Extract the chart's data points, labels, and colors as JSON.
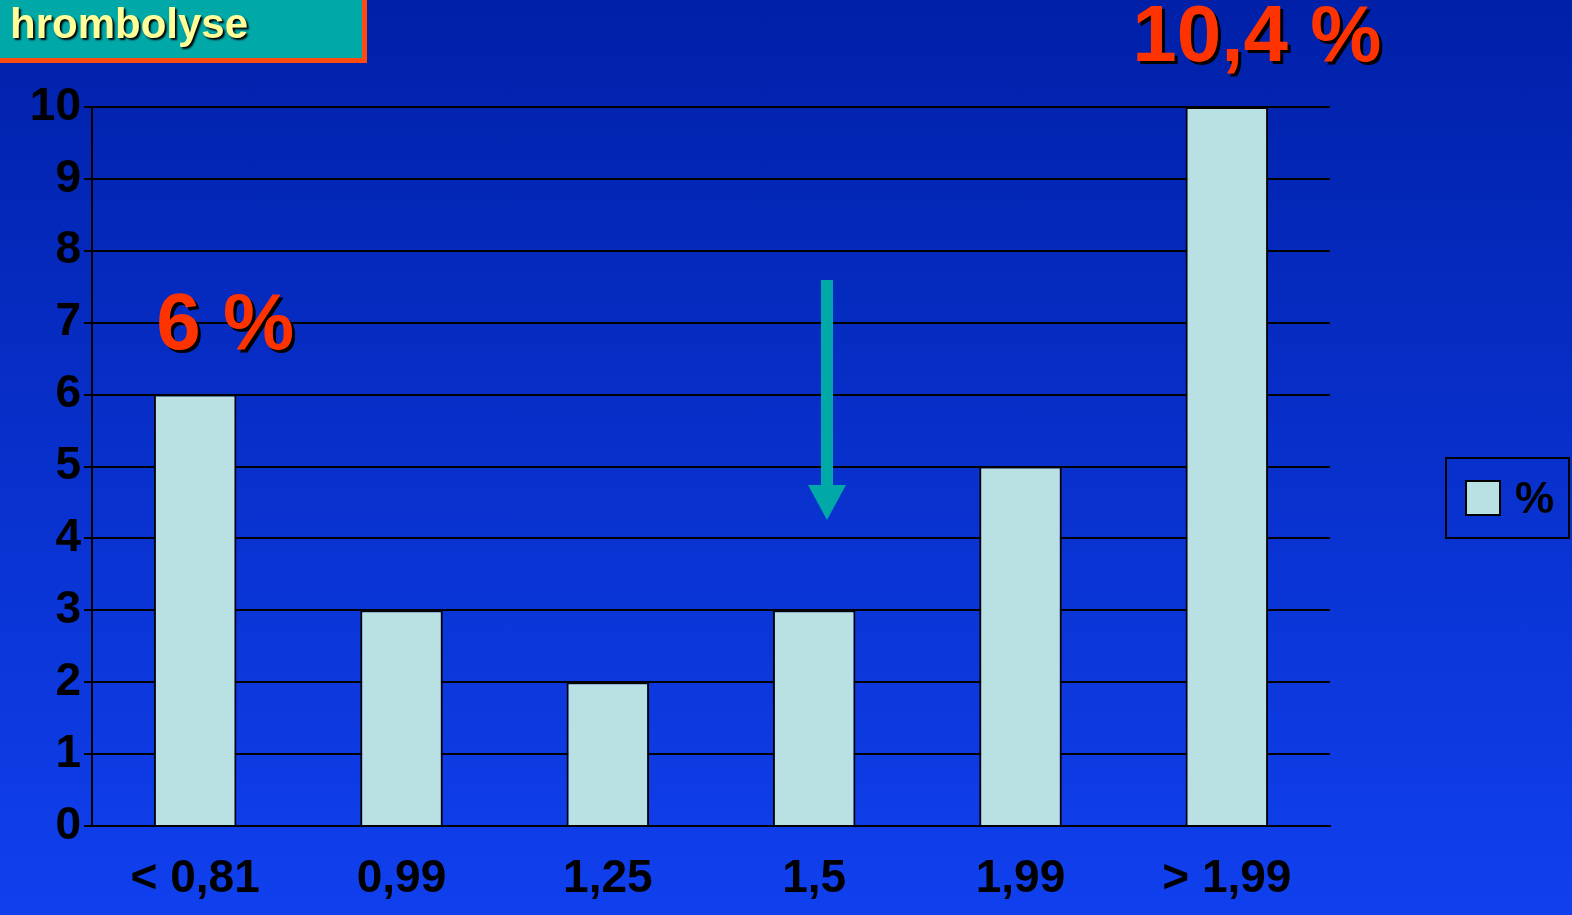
{
  "chart_data": {
    "type": "bar",
    "title": "hrombolyse",
    "categories": [
      "< 0,81",
      "0,99",
      "1,25",
      "1,5",
      "1,99",
      "> 1,99"
    ],
    "series": [
      {
        "name": "%",
        "color": "#b9e0e2",
        "values": [
          6,
          3,
          2,
          3,
          5,
          10
        ]
      }
    ],
    "ylim": [
      0,
      10
    ],
    "yticks": [
      0,
      1,
      2,
      3,
      4,
      5,
      6,
      7,
      8,
      9,
      10
    ],
    "grid": "y",
    "legend": "right",
    "annotations": [
      {
        "text": "6 %",
        "x": "< 0,81",
        "y": 6
      },
      {
        "text": "10,4 %",
        "x": "> 1,99",
        "y": 10
      }
    ]
  }
}
